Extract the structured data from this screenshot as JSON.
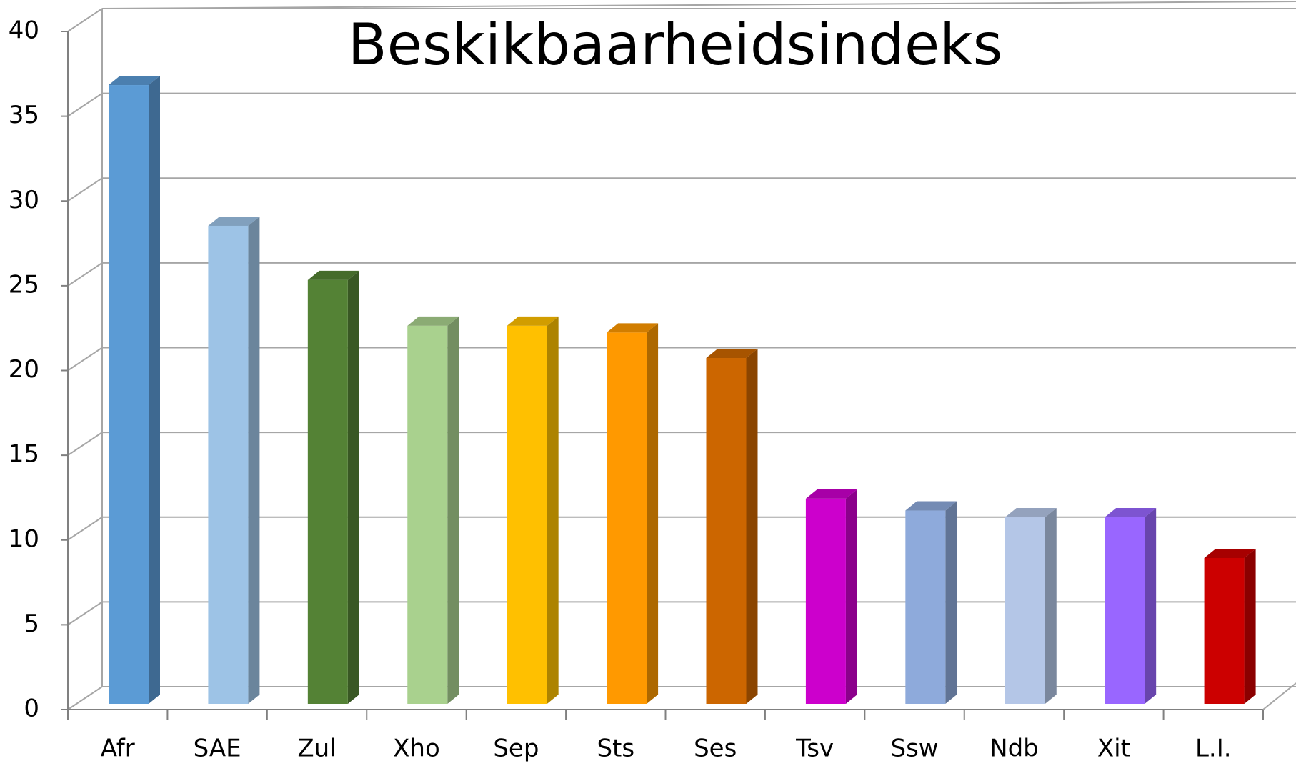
{
  "chart_data": {
    "type": "bar3d",
    "title": "Beskikbaarheidsindeks",
    "categories": [
      "Afr",
      "SAE",
      "Zul",
      "Xho",
      "Sep",
      "Sts",
      "Ses",
      "Tsv",
      "Ssw",
      "Ndb",
      "Xit",
      "L.I."
    ],
    "values": [
      36.5,
      28.2,
      25.0,
      22.3,
      22.3,
      21.9,
      20.4,
      12.1,
      11.4,
      11.0,
      11.0,
      8.6
    ],
    "colors": [
      "#5b9bd5",
      "#9dc3e6",
      "#548235",
      "#a9d18e",
      "#ffc000",
      "#ff9900",
      "#cc6600",
      "#cc00cc",
      "#8eaadb",
      "#b4c6e7",
      "#9966ff",
      "#cc0000"
    ],
    "ylim": [
      0,
      40
    ],
    "yticks": [
      0,
      5,
      10,
      15,
      20,
      25,
      30,
      35,
      40
    ],
    "grid": true
  }
}
